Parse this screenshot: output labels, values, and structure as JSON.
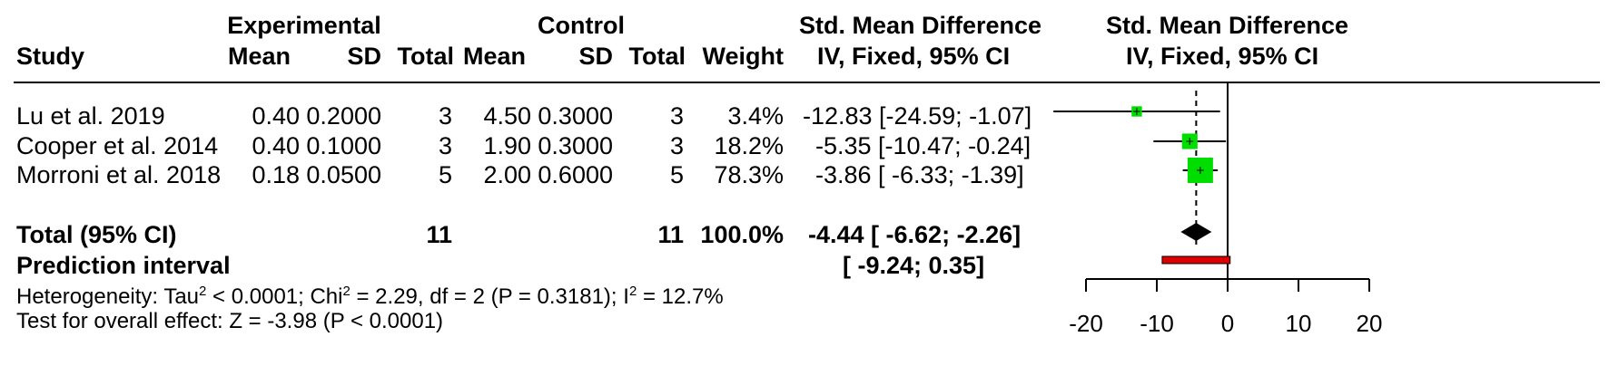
{
  "header": {
    "experimental": "Experimental",
    "control": "Control",
    "smd_title": "Std. Mean Difference",
    "smd_method": "IV, Fixed, 95% CI",
    "plot_title": "Std. Mean Difference",
    "plot_method": "IV, Fixed, 95% CI",
    "study": "Study",
    "mean": "Mean",
    "sd": "SD",
    "total": "Total",
    "weight": "Weight"
  },
  "rows": [
    {
      "study": "Lu et al. 2019",
      "e_mean": "0.40",
      "e_sd": "0.2000",
      "e_total": "3",
      "c_mean": "4.50",
      "c_sd": "0.3000",
      "c_total": "3",
      "weight": "3.4%",
      "ci": "-12.83 [-24.59; -1.07]"
    },
    {
      "study": "Cooper et al. 2014",
      "e_mean": "0.40",
      "e_sd": "0.1000",
      "e_total": "3",
      "c_mean": "1.90",
      "c_sd": "0.3000",
      "c_total": "3",
      "weight": "18.2%",
      "ci": "-5.35 [-10.47; -0.24]"
    },
    {
      "study": "Morroni et al. 2018",
      "e_mean": "0.18",
      "e_sd": "0.0500",
      "e_total": "5",
      "c_mean": "2.00",
      "c_sd": "0.6000",
      "c_total": "5",
      "weight": "78.3%",
      "ci": "-3.86 [ -6.33; -1.39]"
    }
  ],
  "total": {
    "label": "Total (95% CI)",
    "e_total": "11",
    "c_total": "11",
    "weight": "100.0%",
    "ci": "-4.44 [ -6.62; -2.26]"
  },
  "prediction": {
    "label": "Prediction interval",
    "ci": "[ -9.24;  0.35]"
  },
  "heterogeneity": {
    "p1": "Heterogeneity: Tau",
    "sup1": "2",
    "p2": " < 0.0001; Chi",
    "sup2": "2",
    "p3": " = 2.29, df = 2 (P = 0.3181); I",
    "sup3": "2",
    "p4": " = 12.7%"
  },
  "overall_effect": "Test for overall effect: Z = -3.98 (P < 0.0001)",
  "chart_data": {
    "type": "forest",
    "xlim": [
      -20,
      20
    ],
    "xticks": [
      -20,
      -10,
      0,
      10,
      20
    ],
    "null_line": 0,
    "pooled_line": -4.44,
    "studies": [
      {
        "name": "Lu et al. 2019",
        "est": -12.83,
        "lo": -24.59,
        "hi": -1.07,
        "weight": 3.4
      },
      {
        "name": "Cooper et al. 2014",
        "est": -5.35,
        "lo": -10.47,
        "hi": -0.24,
        "weight": 18.2
      },
      {
        "name": "Morroni et al. 2018",
        "est": -3.86,
        "lo": -6.33,
        "hi": -1.39,
        "weight": 78.3
      }
    ],
    "pooled": {
      "est": -4.44,
      "lo": -6.62,
      "hi": -2.26
    },
    "prediction_interval": {
      "lo": -9.24,
      "hi": 0.35
    },
    "colors": {
      "study_box": "#00dd00",
      "diamond": "#000000",
      "prediction_bar": "#dd0000"
    }
  }
}
